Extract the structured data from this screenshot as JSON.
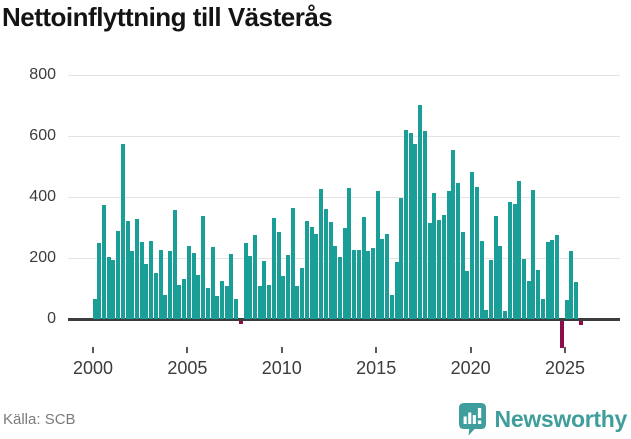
{
  "title": "Nettoinflyttning till Västerås",
  "source": "Källa: SCB",
  "branding": {
    "name": "Newsworthy"
  },
  "colors": {
    "bar_positive": "#1a9e98",
    "bar_negative": "#8d0d4a",
    "gridline": "#e3e3e3",
    "zero_axis": "#3c3c3c",
    "axis_text": "#3c3c3c",
    "title_text": "#141414",
    "source_text": "#7b7b7b",
    "brand_teal": "#3f9e9c"
  },
  "chart_data": {
    "type": "bar",
    "title": "Nettoinflyttning till Västerås",
    "frequency": "quarterly",
    "period_start": "2000 Q1",
    "period_end": "2025 Q4",
    "x_tick_labels": [
      "2000",
      "2005",
      "2010",
      "2015",
      "2020",
      "2025"
    ],
    "y_ticks": [
      0,
      200,
      400,
      600,
      800
    ],
    "ylim": [
      -100,
      820
    ],
    "grid": true,
    "legend": false,
    "values": [
      65,
      249,
      374,
      203,
      193,
      289,
      575,
      321,
      223,
      328,
      252,
      180,
      255,
      150,
      226,
      79,
      223,
      357,
      111,
      131,
      239,
      216,
      144,
      337,
      102,
      236,
      75,
      125,
      108,
      213,
      66,
      -10,
      249,
      207,
      276,
      108,
      190,
      110,
      331,
      285,
      141,
      210,
      364,
      108,
      167,
      321,
      302,
      279,
      426,
      361,
      318,
      239,
      203,
      298,
      429,
      226,
      227,
      334,
      223,
      232,
      420,
      262,
      279,
      79,
      187,
      397,
      620,
      610,
      574,
      702,
      617,
      315,
      413,
      325,
      341,
      420,
      554,
      446,
      285,
      157,
      482,
      433,
      256,
      30,
      194,
      338,
      239,
      26,
      384,
      377,
      453,
      197,
      125,
      423,
      161,
      66,
      252,
      259,
      276,
      -89,
      62,
      223,
      121,
      -16
    ]
  }
}
